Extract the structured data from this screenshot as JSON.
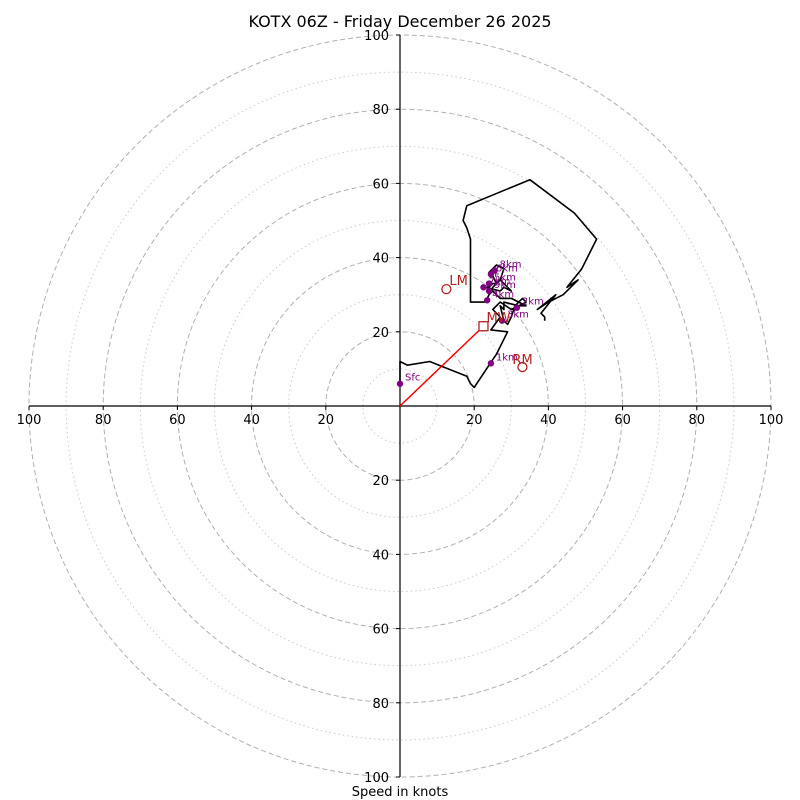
{
  "chart_data": {
    "type": "hodograph",
    "title": "KOTX 06Z - Friday December 26 2025",
    "xlabel": "Speed in knots",
    "units": "knots",
    "range": [
      -100,
      100
    ],
    "rings_major": [
      20,
      40,
      60,
      80,
      100
    ],
    "rings_minor": [
      10,
      30,
      50,
      70,
      90
    ],
    "x_tick_labels": [
      "100",
      "80",
      "60",
      "40",
      "20",
      "20",
      "40",
      "60",
      "80",
      "100"
    ],
    "y_tick_labels": [
      "100",
      "80",
      "60",
      "40",
      "20",
      "20",
      "40",
      "60",
      "80",
      "100"
    ],
    "hodograph_trace": [
      [
        0,
        6
      ],
      [
        0,
        12
      ],
      [
        2,
        11
      ],
      [
        8,
        12
      ],
      [
        13,
        10
      ],
      [
        18,
        8
      ],
      [
        19,
        6
      ],
      [
        20,
        5
      ],
      [
        22,
        8
      ],
      [
        24,
        11
      ],
      [
        26,
        14
      ],
      [
        28,
        18
      ],
      [
        29,
        20
      ],
      [
        24.5,
        20.5
      ],
      [
        27,
        24
      ],
      [
        25,
        26
      ],
      [
        27,
        28
      ],
      [
        30,
        26
      ],
      [
        32,
        27
      ],
      [
        31,
        27
      ],
      [
        30,
        24
      ],
      [
        29,
        22
      ],
      [
        28,
        23
      ],
      [
        27,
        27
      ],
      [
        28,
        26
      ],
      [
        28,
        28
      ],
      [
        32,
        27
      ],
      [
        34,
        28
      ],
      [
        33,
        29
      ],
      [
        31,
        27
      ],
      [
        34,
        27
      ],
      [
        32,
        28
      ],
      [
        30,
        29
      ],
      [
        27,
        29
      ],
      [
        25,
        31
      ],
      [
        24,
        30
      ],
      [
        25,
        32
      ],
      [
        27,
        34
      ],
      [
        28,
        37
      ],
      [
        26,
        38
      ],
      [
        24,
        36
      ],
      [
        25,
        35
      ],
      [
        26,
        33
      ],
      [
        25,
        33
      ],
      [
        24,
        32
      ],
      [
        23,
        32
      ],
      [
        27,
        31
      ],
      [
        28,
        32
      ],
      [
        30,
        31
      ],
      [
        28,
        33
      ],
      [
        27,
        34
      ],
      [
        26,
        33
      ],
      [
        25,
        32
      ],
      [
        23,
        28
      ],
      [
        21,
        28
      ],
      [
        19,
        28
      ],
      [
        19,
        38
      ],
      [
        19,
        45
      ],
      [
        18,
        48
      ],
      [
        17,
        50
      ],
      [
        18,
        54
      ],
      [
        35,
        61
      ],
      [
        47,
        52
      ],
      [
        53,
        45
      ],
      [
        49,
        37
      ],
      [
        45,
        32
      ],
      [
        48,
        34
      ],
      [
        44,
        30
      ],
      [
        40,
        28
      ],
      [
        37,
        26
      ],
      [
        42,
        30
      ],
      [
        38,
        25
      ],
      [
        39,
        24
      ],
      [
        39,
        23
      ]
    ],
    "height_markers": [
      {
        "label": "Sfc",
        "u": 0,
        "v": 6
      },
      {
        "label": "1km",
        "u": 24.5,
        "v": 11.5
      },
      {
        "label": "2km",
        "u": 31.5,
        "v": 26.5
      },
      {
        "label": "3km",
        "u": 27.5,
        "v": 23
      },
      {
        "label": "4km",
        "u": 23.5,
        "v": 28.5
      },
      {
        "label": "5km",
        "u": 24,
        "v": 33
      },
      {
        "label": "6km",
        "u": 24.5,
        "v": 35.5
      },
      {
        "label": "7km",
        "u": 22.5,
        "v": 32
      },
      {
        "label": "8km",
        "u": 25.5,
        "v": 36.5
      },
      {
        "label": "9km",
        "u": 24,
        "v": 31
      }
    ],
    "storm_motion": {
      "LM": {
        "u": 12.5,
        "v": 31.5
      },
      "MW": {
        "u": 22.5,
        "v": 21.5
      },
      "RM": {
        "u": 33,
        "v": 10.5
      }
    },
    "colors": {
      "trace": "#000000",
      "marker": "#800080",
      "storm": "#b22222",
      "vector": "#ff0000",
      "grid": "#b0b0b0",
      "axis": "#000000"
    }
  }
}
